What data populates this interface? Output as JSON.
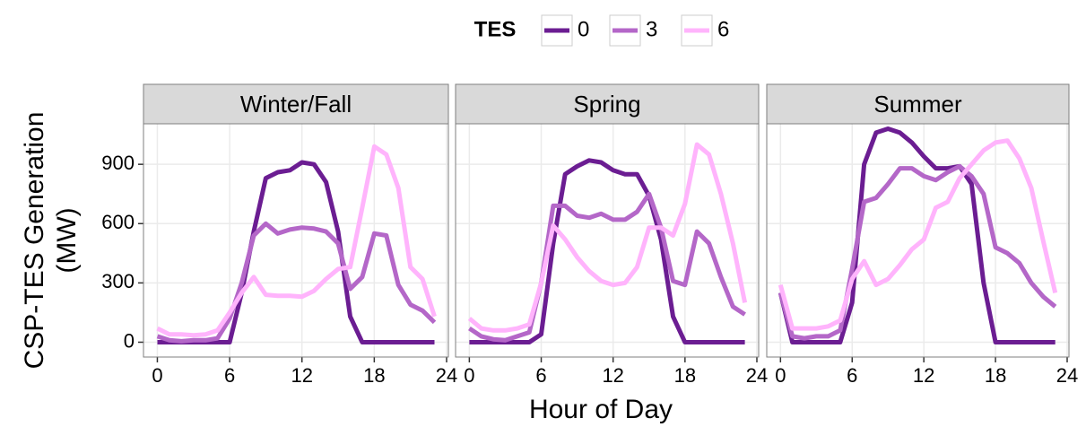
{
  "chart_data": {
    "type": "line",
    "legend_title": "TES",
    "xlabel": "Hour of Day",
    "ylabel": [
      "CSP-TES Generation",
      "(MW)"
    ],
    "series": [
      {
        "name": "0",
        "color": "#6b1d92"
      },
      {
        "name": "3",
        "color": "#b467c8"
      },
      {
        "name": "6",
        "color": "#ffb4fc"
      }
    ],
    "x": [
      0,
      1,
      2,
      3,
      4,
      5,
      6,
      7,
      8,
      9,
      10,
      11,
      12,
      13,
      14,
      15,
      16,
      17,
      18,
      19,
      20,
      21,
      22,
      23
    ],
    "xlim": [
      -1.15,
      24.15
    ],
    "xticks": [
      0,
      6,
      12,
      18,
      24
    ],
    "ylim": [
      -75,
      1105
    ],
    "yticks": [
      0,
      300,
      600,
      900
    ],
    "grid": true,
    "panels": [
      {
        "title": "Winter/Fall",
        "values": [
          [
            0,
            0,
            0,
            0,
            0,
            0,
            0,
            250,
            560,
            830,
            860,
            870,
            910,
            900,
            810,
            560,
            130,
            0,
            0,
            0,
            0,
            0,
            0,
            0
          ],
          [
            30,
            10,
            5,
            10,
            10,
            20,
            120,
            300,
            540,
            600,
            550,
            570,
            580,
            575,
            560,
            500,
            270,
            330,
            550,
            540,
            290,
            190,
            160,
            100
          ],
          [
            70,
            40,
            40,
            35,
            40,
            60,
            150,
            250,
            330,
            240,
            235,
            235,
            230,
            260,
            320,
            370,
            380,
            680,
            990,
            950,
            780,
            380,
            320,
            130
          ]
        ]
      },
      {
        "title": "Spring",
        "values": [
          [
            0,
            0,
            0,
            0,
            0,
            0,
            40,
            500,
            850,
            890,
            920,
            910,
            870,
            850,
            850,
            740,
            520,
            130,
            0,
            0,
            0,
            0,
            0,
            0
          ],
          [
            70,
            30,
            15,
            10,
            30,
            50,
            300,
            690,
            690,
            640,
            630,
            650,
            620,
            620,
            660,
            750,
            580,
            310,
            290,
            560,
            500,
            330,
            180,
            140
          ],
          [
            120,
            70,
            60,
            60,
            70,
            90,
            300,
            590,
            520,
            430,
            360,
            310,
            290,
            300,
            380,
            580,
            580,
            540,
            700,
            1000,
            950,
            750,
            500,
            200
          ]
        ]
      },
      {
        "title": "Summer",
        "values": [
          [
            250,
            0,
            0,
            0,
            0,
            0,
            200,
            900,
            1060,
            1080,
            1060,
            1010,
            940,
            880,
            880,
            890,
            800,
            300,
            0,
            0,
            0,
            0,
            0,
            0
          ],
          [
            250,
            30,
            20,
            30,
            30,
            60,
            370,
            710,
            730,
            800,
            880,
            880,
            840,
            820,
            860,
            890,
            840,
            750,
            480,
            450,
            400,
            300,
            230,
            180
          ],
          [
            290,
            70,
            70,
            70,
            80,
            110,
            320,
            410,
            290,
            320,
            390,
            470,
            520,
            680,
            710,
            830,
            900,
            970,
            1010,
            1020,
            930,
            780,
            510,
            250
          ]
        ]
      }
    ]
  }
}
